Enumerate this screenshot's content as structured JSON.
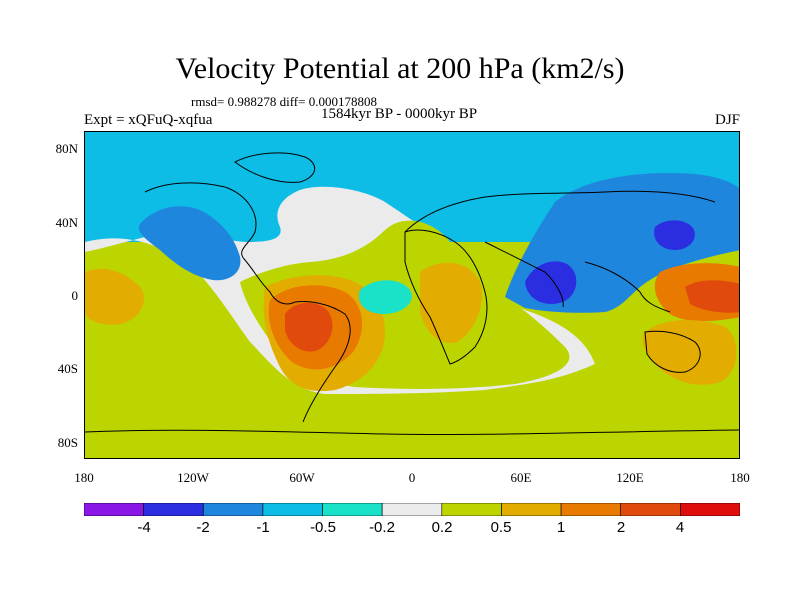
{
  "title": "Velocity Potential at 200 hPa (km2/s)",
  "stats": "rmsd= 0.988278 diff= 0.000178808",
  "experiment": "Expt = xQFuQ-xqfua",
  "period": "1584kyr BP - 0000kyr BP",
  "season": "DJF",
  "lat_labels": [
    "80N",
    "40N",
    "0",
    "40S",
    "80S"
  ],
  "lon_labels": [
    "180",
    "120W",
    "60W",
    "0",
    "60E",
    "120E",
    "180"
  ],
  "colors": {
    "lt_-4": "#8a17e6",
    "-4_-2": "#2a2ee0",
    "-2_-1": "#1f86de",
    "-1_-0.5": "#0dbde6",
    "-0.5_-0.2": "#19e2c9",
    "-0.2_0.2": "#ebebeb",
    "0.2_0.5": "#bcd500",
    "0.5_1": "#e2ac00",
    "1_2": "#e97a00",
    "2_4": "#e04a0d",
    "gt_4": "#e00d0d"
  },
  "legend": {
    "labels": [
      "-4",
      "-2",
      "-1",
      "-0.5",
      "-0.2",
      "0.2",
      "0.5",
      "1",
      "2",
      "4"
    ]
  }
}
